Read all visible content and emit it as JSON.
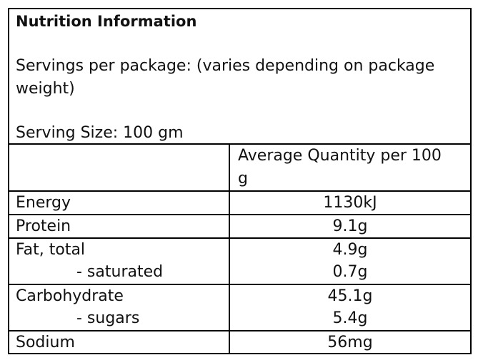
{
  "header": {
    "title": "Nutrition Information",
    "servings_per_package": "Servings per package: (varies depending on package weight)",
    "serving_size": "Serving Size: 100 gm"
  },
  "table": {
    "column_header": "Average Quantity per 100 g",
    "rows": [
      {
        "label": "Energy",
        "value": "1130kJ"
      },
      {
        "label": "Protein",
        "value": "9.1g"
      },
      {
        "label": "Fat, total",
        "value": "4.9g",
        "sub": {
          "label": "- saturated",
          "value": "0.7g"
        }
      },
      {
        "label": "Carbohydrate",
        "value": "45.1g",
        "sub": {
          "label": "- sugars",
          "value": "5.4g"
        }
      },
      {
        "label": "Sodium",
        "value": "56mg"
      }
    ]
  }
}
